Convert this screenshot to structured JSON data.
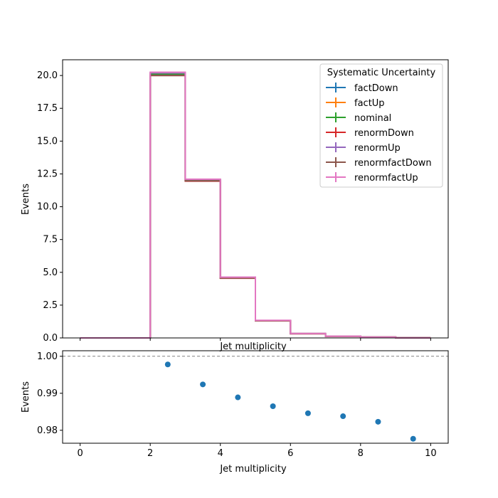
{
  "chart_data": [
    {
      "type": "line",
      "subtype": "step-histogram",
      "xlabel": "Jet multiplicity",
      "ylabel": "Events",
      "xlim": [
        -0.5,
        10.5
      ],
      "ylim": [
        0,
        21.2
      ],
      "bin_edges": [
        0,
        1,
        2,
        3,
        4,
        5,
        6,
        7,
        8,
        9,
        10
      ],
      "x_ticks": [
        0,
        2,
        4,
        6,
        8,
        10
      ],
      "x_tick_labels": [
        "0",
        "2",
        "4",
        "6",
        "8",
        "10"
      ],
      "y_ticks": [
        0,
        2.5,
        5,
        7.5,
        10,
        12.5,
        15,
        17.5,
        20
      ],
      "y_tick_labels": [
        "0.0",
        "2.5",
        "5.0",
        "7.5",
        "10.0",
        "12.5",
        "15.0",
        "17.5",
        "20.0"
      ],
      "grid": false,
      "legend": {
        "title": "Systematic Uncertainty",
        "placement": "top-right"
      },
      "series": [
        {
          "name": "factDown",
          "color": "#1f77b4",
          "values": [
            0,
            0,
            20.1,
            12.0,
            4.58,
            1.32,
            0.33,
            0.13,
            0.06,
            0.01
          ]
        },
        {
          "name": "factUp",
          "color": "#ff7f0e",
          "values": [
            0,
            0,
            20.15,
            12.05,
            4.6,
            1.33,
            0.33,
            0.13,
            0.06,
            0.01
          ]
        },
        {
          "name": "nominal",
          "color": "#2ca02c",
          "values": [
            0,
            0,
            20.12,
            12.02,
            4.59,
            1.32,
            0.33,
            0.13,
            0.06,
            0.01
          ]
        },
        {
          "name": "renormDown",
          "color": "#d62728",
          "values": [
            0,
            0,
            20.0,
            11.95,
            4.55,
            1.31,
            0.32,
            0.12,
            0.06,
            0.01
          ]
        },
        {
          "name": "renormUp",
          "color": "#9467bd",
          "values": [
            0,
            0,
            20.2,
            12.08,
            4.62,
            1.33,
            0.33,
            0.13,
            0.06,
            0.01
          ]
        },
        {
          "name": "renormfactDown",
          "color": "#8c564b",
          "values": [
            0,
            0,
            20.0,
            11.97,
            4.56,
            1.31,
            0.32,
            0.12,
            0.06,
            0.01
          ]
        },
        {
          "name": "renormfactUp",
          "color": "#e377c2",
          "values": [
            0,
            0,
            20.25,
            12.1,
            4.63,
            1.34,
            0.34,
            0.13,
            0.06,
            0.01
          ]
        }
      ]
    },
    {
      "type": "scatter",
      "xlabel": "Jet multiplicity",
      "ylabel": "Events",
      "xlim": [
        -0.5,
        10.5
      ],
      "ylim": [
        0.9765,
        1.0015
      ],
      "x_ticks": [
        0,
        2,
        4,
        6,
        8,
        10
      ],
      "x_tick_labels": [
        "0",
        "2",
        "4",
        "6",
        "8",
        "10"
      ],
      "y_ticks": [
        0.98,
        0.99,
        1.0
      ],
      "y_tick_labels": [
        "0.98",
        "0.99",
        "1.00"
      ],
      "reference_line": 1.0,
      "grid": false,
      "color": "#1f77b4",
      "points": [
        {
          "x": 2.5,
          "y": 0.9978
        },
        {
          "x": 3.5,
          "y": 0.9924
        },
        {
          "x": 4.5,
          "y": 0.9889
        },
        {
          "x": 5.5,
          "y": 0.9865
        },
        {
          "x": 6.5,
          "y": 0.9846
        },
        {
          "x": 7.5,
          "y": 0.9838
        },
        {
          "x": 8.5,
          "y": 0.9823
        },
        {
          "x": 9.5,
          "y": 0.9777
        }
      ]
    }
  ]
}
